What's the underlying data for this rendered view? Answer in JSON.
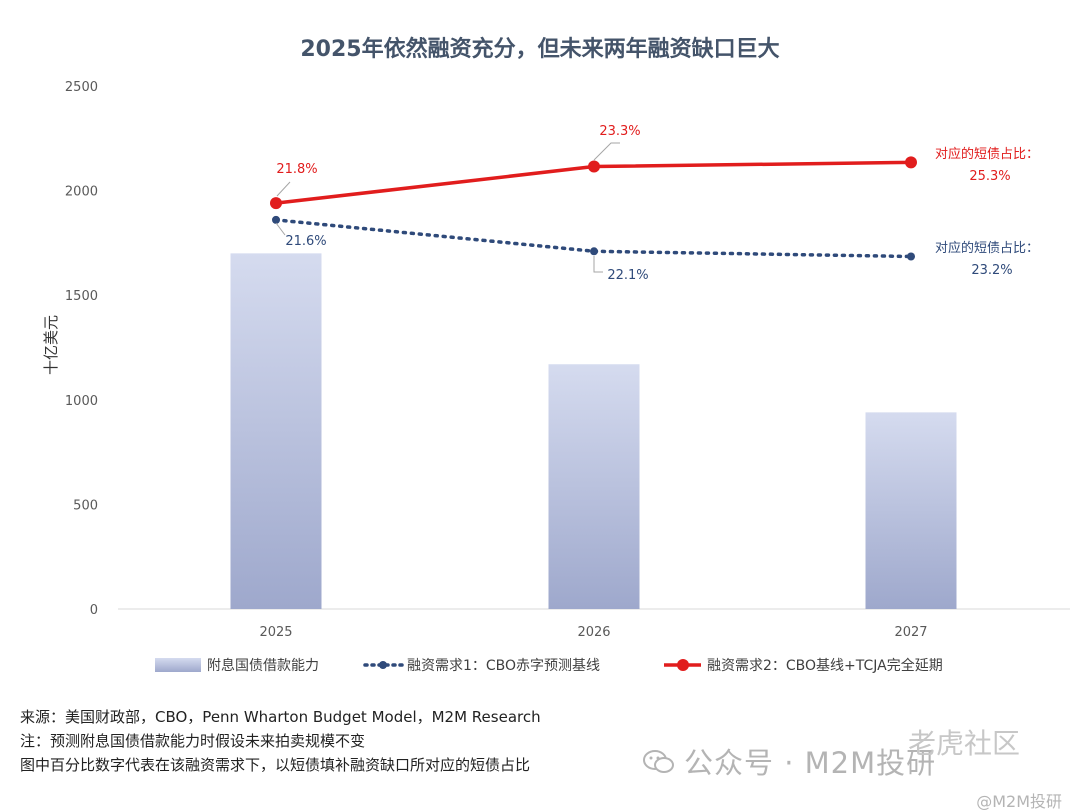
{
  "chart_data": {
    "type": "bar",
    "title": "2025年依然融资充分，但未来两年融资缺口巨大",
    "ylabel": "十亿美元",
    "xlabel": "",
    "ylim": [
      0,
      2500
    ],
    "yticks": [
      0,
      500,
      1000,
      1500,
      2000,
      2500
    ],
    "categories": [
      "2025",
      "2026",
      "2027"
    ],
    "grid": false,
    "legend_position": "bottom",
    "series": [
      {
        "name": "附息国债借款能力",
        "type": "bar",
        "color": "#c9cfe6",
        "values": [
          1700,
          1170,
          940
        ]
      },
      {
        "name": "融资需求1：CBO赤字预测基线",
        "type": "line",
        "style": "dotted",
        "color": "#2f4a7a",
        "values": [
          1860,
          1710,
          1685
        ],
        "labels": [
          "21.6%",
          "22.1%",
          "对应的短债占比：23.2%"
        ]
      },
      {
        "name": "融资需求2：CBO基线+TCJA完全延期",
        "type": "line",
        "style": "solid",
        "color": "#e11d1d",
        "values": [
          1940,
          2115,
          2135
        ],
        "labels": [
          "21.8%",
          "23.3%",
          "对应的短债占比：25.3%"
        ]
      }
    ]
  },
  "annotations": {
    "series1_2025": "21.6%",
    "series1_2026": "22.1%",
    "series1_2027_label": "对应的短债占比：",
    "series1_2027_value": "23.2%",
    "series2_2025": "21.8%",
    "series2_2026": "23.3%",
    "series2_2027_label": "对应的短债占比：",
    "series2_2027_value": "25.3%"
  },
  "notes": {
    "source": "来源：美国财政部，CBO，Penn Wharton Budget Model，M2M Research",
    "note": "注：预测附息国债借款能力时假设未来拍卖规模不变",
    "explain": "图中百分比数字代表在该融资需求下，以短债填补融资缺口所对应的短债占比"
  },
  "watermark": {
    "main": "公众号 · M2M投研",
    "sub": "@M2M投研",
    "forum": "老虎社区"
  },
  "colors": {
    "title": "#44546a",
    "axis_text": "#595959",
    "bar": "#c9cfe6",
    "bar_bottom": "#9aa4cb",
    "line1": "#2f4a7a",
    "line2": "#e11d1d",
    "axis": "#d9d9d9"
  }
}
